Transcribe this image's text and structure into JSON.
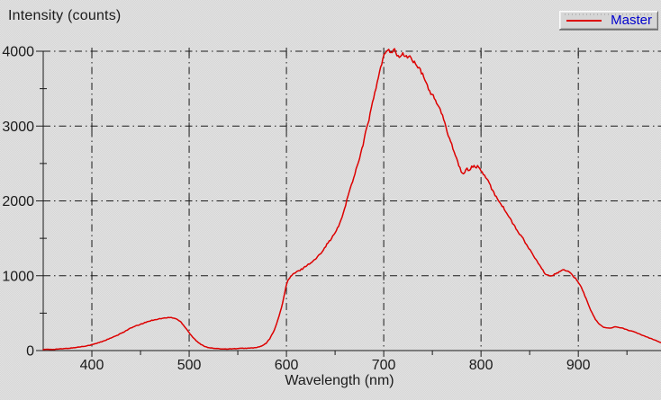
{
  "colors": {
    "background": "#dcdcdc",
    "axis": "#1a1a1a",
    "grid": "#1a1a1a",
    "series_red": "#dd0000",
    "legend_text_blue": "#0000cd"
  },
  "legend": {
    "label": "Master"
  },
  "chart_data": {
    "type": "line",
    "title": "",
    "xlabel": "Wavelength (nm)",
    "ylabel": "Intensity (counts)",
    "xlim": [
      350,
      985
    ],
    "ylim": [
      0,
      4000
    ],
    "grid": "dash-dot",
    "legend_position": "top-right",
    "x_ticks": [
      400,
      500,
      600,
      700,
      800,
      900
    ],
    "x_minor_ticks": [
      450,
      550,
      650,
      750,
      850,
      950
    ],
    "y_ticks": [
      0,
      1000,
      2000,
      3000,
      4000
    ],
    "y_minor_ticks": [
      500,
      1500,
      2500,
      3500
    ],
    "series": [
      {
        "name": "Master",
        "color": "#dd0000",
        "points": [
          [
            350,
            15
          ],
          [
            356,
            16
          ],
          [
            362,
            18
          ],
          [
            368,
            22
          ],
          [
            374,
            28
          ],
          [
            380,
            35
          ],
          [
            386,
            46
          ],
          [
            392,
            58
          ],
          [
            398,
            72
          ],
          [
            404,
            92
          ],
          [
            410,
            118
          ],
          [
            416,
            148
          ],
          [
            422,
            180
          ],
          [
            428,
            215
          ],
          [
            434,
            258
          ],
          [
            440,
            300
          ],
          [
            446,
            332
          ],
          [
            452,
            360
          ],
          [
            458,
            390
          ],
          [
            464,
            412
          ],
          [
            470,
            425
          ],
          [
            475,
            435
          ],
          [
            480,
            442
          ],
          [
            484,
            436
          ],
          [
            488,
            415
          ],
          [
            492,
            375
          ],
          [
            496,
            310
          ],
          [
            500,
            240
          ],
          [
            504,
            175
          ],
          [
            508,
            122
          ],
          [
            512,
            82
          ],
          [
            516,
            56
          ],
          [
            520,
            40
          ],
          [
            525,
            30
          ],
          [
            530,
            25
          ],
          [
            536,
            22
          ],
          [
            542,
            23
          ],
          [
            548,
            26
          ],
          [
            554,
            29
          ],
          [
            560,
            32
          ],
          [
            566,
            36
          ],
          [
            571,
            45
          ],
          [
            575,
            62
          ],
          [
            579,
            95
          ],
          [
            583,
            160
          ],
          [
            587,
            260
          ],
          [
            591,
            400
          ],
          [
            595,
            580
          ],
          [
            598,
            760
          ],
          [
            600,
            880
          ],
          [
            602,
            945
          ],
          [
            605,
            1000
          ],
          [
            608,
            1030
          ],
          [
            612,
            1060
          ],
          [
            616,
            1090
          ],
          [
            620,
            1130
          ],
          [
            624,
            1165
          ],
          [
            628,
            1200
          ],
          [
            632,
            1250
          ],
          [
            636,
            1315
          ],
          [
            640,
            1390
          ],
          [
            644,
            1460
          ],
          [
            648,
            1530
          ],
          [
            652,
            1620
          ],
          [
            655,
            1700
          ],
          [
            658,
            1820
          ],
          [
            661,
            1960
          ],
          [
            664,
            2100
          ],
          [
            667,
            2220
          ],
          [
            670,
            2350
          ],
          [
            673,
            2480
          ],
          [
            676,
            2620
          ],
          [
            679,
            2760
          ],
          [
            682,
            2950
          ],
          [
            685,
            3100
          ],
          [
            688,
            3280
          ],
          [
            691,
            3450
          ],
          [
            694,
            3620
          ],
          [
            697,
            3790
          ],
          [
            700,
            3920
          ],
          [
            702,
            3990
          ],
          [
            704,
            4030
          ],
          [
            706,
            4015
          ],
          [
            708,
            3980
          ],
          [
            710,
            4020
          ],
          [
            712,
            4000
          ],
          [
            714,
            3950
          ],
          [
            716,
            3915
          ],
          [
            718,
            3935
          ],
          [
            720,
            3960
          ],
          [
            722,
            3940
          ],
          [
            724,
            3915
          ],
          [
            726,
            3945
          ],
          [
            728,
            3900
          ],
          [
            730,
            3870
          ],
          [
            733,
            3825
          ],
          [
            736,
            3775
          ],
          [
            740,
            3685
          ],
          [
            744,
            3565
          ],
          [
            748,
            3450
          ],
          [
            752,
            3375
          ],
          [
            756,
            3270
          ],
          [
            760,
            3150
          ],
          [
            763,
            3020
          ],
          [
            766,
            2900
          ],
          [
            769,
            2790
          ],
          [
            772,
            2680
          ],
          [
            775,
            2560
          ],
          [
            778,
            2450
          ],
          [
            780,
            2390
          ],
          [
            782,
            2360
          ],
          [
            784,
            2395
          ],
          [
            786,
            2430
          ],
          [
            788,
            2405
          ],
          [
            790,
            2450
          ],
          [
            792,
            2470
          ],
          [
            794,
            2445
          ],
          [
            796,
            2460
          ],
          [
            798,
            2435
          ],
          [
            800,
            2410
          ],
          [
            803,
            2350
          ],
          [
            806,
            2290
          ],
          [
            810,
            2190
          ],
          [
            814,
            2090
          ],
          [
            818,
            2010
          ],
          [
            822,
            1930
          ],
          [
            826,
            1845
          ],
          [
            830,
            1760
          ],
          [
            834,
            1670
          ],
          [
            838,
            1585
          ],
          [
            842,
            1520
          ],
          [
            846,
            1430
          ],
          [
            850,
            1350
          ],
          [
            854,
            1265
          ],
          [
            858,
            1180
          ],
          [
            862,
            1100
          ],
          [
            865,
            1045
          ],
          [
            868,
            1005
          ],
          [
            871,
            990
          ],
          [
            874,
            1010
          ],
          [
            877,
            1030
          ],
          [
            880,
            1050
          ],
          [
            883,
            1068
          ],
          [
            886,
            1080
          ],
          [
            889,
            1058
          ],
          [
            892,
            1030
          ],
          [
            895,
            990
          ],
          [
            898,
            952
          ],
          [
            900,
            920
          ],
          [
            903,
            848
          ],
          [
            906,
            760
          ],
          [
            909,
            660
          ],
          [
            912,
            560
          ],
          [
            915,
            478
          ],
          [
            918,
            410
          ],
          [
            921,
            360
          ],
          [
            924,
            326
          ],
          [
            927,
            306
          ],
          [
            930,
            300
          ],
          [
            933,
            305
          ],
          [
            936,
            310
          ],
          [
            939,
            316
          ],
          [
            942,
            310
          ],
          [
            945,
            300
          ],
          [
            948,
            288
          ],
          [
            951,
            275
          ],
          [
            955,
            258
          ],
          [
            959,
            240
          ],
          [
            963,
            220
          ],
          [
            967,
            200
          ],
          [
            971,
            180
          ],
          [
            975,
            160
          ],
          [
            979,
            140
          ],
          [
            982,
            122
          ],
          [
            985,
            103
          ]
        ]
      }
    ]
  }
}
